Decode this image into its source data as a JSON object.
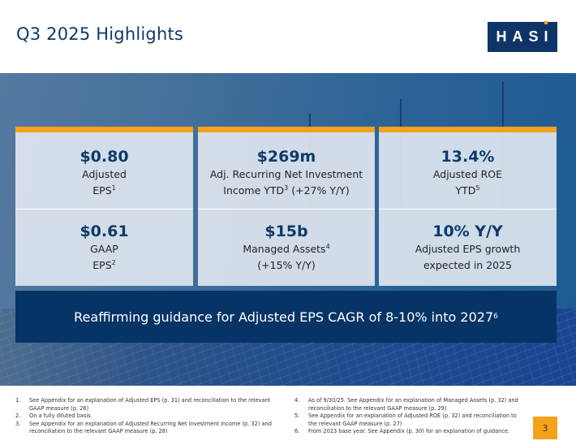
{
  "header": {
    "title": "Q3 2025 Highlights",
    "logo_text": "HASI"
  },
  "colors": {
    "brand_navy": "#0f3568",
    "accent_orange": "#f4a11c",
    "banner_navy": "#073466",
    "metric_text": "#0e3a6b"
  },
  "cards": [
    {
      "top": {
        "metric": "$0.80",
        "line1": "Adjusted",
        "line2": "EPS",
        "sup2": "1"
      },
      "bottom": {
        "metric": "$0.61",
        "line1": "GAAP",
        "line2": "EPS",
        "sup2": "2"
      }
    },
    {
      "top": {
        "metric": "$269m",
        "line1": "Adj. Recurring Net Investment",
        "line2a": "Income YTD",
        "sup2": "3",
        "line2b": " (+27% Y/Y)"
      },
      "bottom": {
        "metric": "$15b",
        "line1": "Managed Assets",
        "sup1": "4",
        "line2": "(+15% Y/Y)"
      }
    },
    {
      "top": {
        "metric": "13.4%",
        "line1": "Adjusted ROE",
        "line2": "YTD",
        "sup2": "5"
      },
      "bottom": {
        "metric": "10% Y/Y",
        "line1": "Adjusted EPS growth",
        "line2": "expected in 2025"
      }
    }
  ],
  "banner": {
    "text": "Reaffirming guidance for Adjusted EPS CAGR of 8-10% into 2027",
    "sup": "6"
  },
  "footnotes": [
    {
      "num": "1.",
      "text": "See Appendix for an explanation of Adjusted EPS (p. 31) and reconciliation to the relevant GAAP measure (p. 26)"
    },
    {
      "num": "2.",
      "text": "On a fully diluted basis"
    },
    {
      "num": "3.",
      "text": "See Appendix for an explanation of Adjusted Recurring Net Investment Income (p. 32) and reconciliation to the relevant GAAP measure (p. 28)"
    },
    {
      "num": "4.",
      "text": "As of 9/30/25. See Appendix for an explanation of Managed Assets (p. 32) and reconciliation to the relevant GAAP measure (p. 29)"
    },
    {
      "num": "5.",
      "text": "See Appendix for an explanation of Adjusted ROE (p. 32) and reconciliation to the relevant GAAP measure (p. 27)"
    },
    {
      "num": "6.",
      "text": "From 2023 base year. See Appendix (p. 30) for an explanation of guidance."
    }
  ],
  "page_number": "3"
}
